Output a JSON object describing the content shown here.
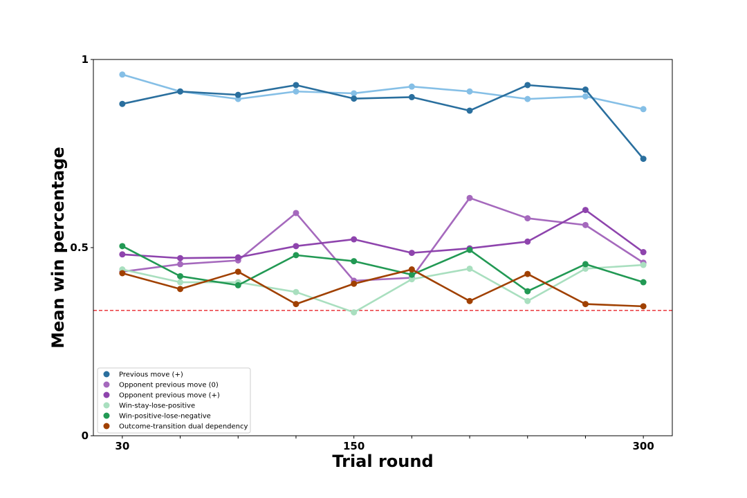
{
  "chart_data": {
    "type": "line",
    "title": "",
    "xlabel": "Trial round",
    "ylabel": "Mean win percentage",
    "x": [
      30,
      60,
      90,
      120,
      150,
      180,
      210,
      240,
      270,
      300
    ],
    "xlim": [
      15,
      315
    ],
    "ylim": [
      0,
      1
    ],
    "x_tick_values": [
      30,
      60,
      90,
      120,
      150,
      180,
      210,
      240,
      270,
      300
    ],
    "x_tick_labels": [
      "30",
      "",
      "",
      "",
      "150",
      "",
      "",
      "",
      "",
      "300"
    ],
    "y_ticks": [
      0,
      0.5,
      1
    ],
    "y_tick_labels": [
      "0",
      "0.5",
      "1"
    ],
    "grid": false,
    "legend_position": "bottom-left",
    "reference_line": {
      "y": 0.333,
      "color": "#e8262a",
      "style": "dashed"
    },
    "series": [
      {
        "name": "",
        "color": "#85bfe6",
        "show_in_legend": false,
        "values": [
          0.96,
          0.915,
          0.895,
          0.915,
          0.91,
          0.928,
          0.915,
          0.895,
          0.902,
          0.868
        ]
      },
      {
        "name": "Previous move (+)",
        "color": "#2a6f9e",
        "show_in_legend": true,
        "values": [
          0.882,
          0.915,
          0.906,
          0.932,
          0.896,
          0.9,
          0.864,
          0.932,
          0.92,
          0.736
        ]
      },
      {
        "name": "Opponent previous move (0)",
        "color": "#a569bd",
        "show_in_legend": true,
        "values": [
          0.436,
          0.456,
          0.466,
          0.592,
          0.412,
          0.42,
          0.632,
          0.578,
          0.56,
          0.46
        ]
      },
      {
        "name": "Opponent previous move (+)",
        "color": "#8e44ad",
        "show_in_legend": true,
        "values": [
          0.482,
          0.472,
          0.474,
          0.504,
          0.522,
          0.486,
          0.498,
          0.516,
          0.6,
          0.488
        ]
      },
      {
        "name": "Win-stay-lose-positive",
        "color": "#a9dfbf",
        "show_in_legend": true,
        "values": [
          0.442,
          0.408,
          0.408,
          0.382,
          0.328,
          0.416,
          0.444,
          0.358,
          0.444,
          0.454
        ]
      },
      {
        "name": "Win-positive-lose-negative",
        "color": "#229954",
        "show_in_legend": true,
        "values": [
          0.504,
          0.424,
          0.4,
          0.48,
          0.464,
          0.428,
          0.494,
          0.384,
          0.456,
          0.408
        ]
      },
      {
        "name": "Outcome-transition dual dependency",
        "color": "#a04000",
        "show_in_legend": true,
        "values": [
          0.432,
          0.39,
          0.436,
          0.35,
          0.404,
          0.442,
          0.358,
          0.43,
          0.35,
          0.344
        ]
      }
    ]
  }
}
